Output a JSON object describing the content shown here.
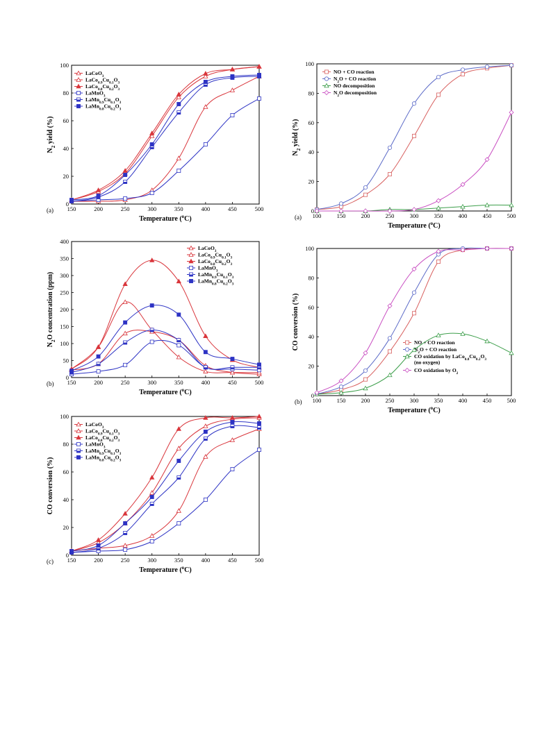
{
  "colors": {
    "red": "#d9353b",
    "blue": "#2d33c4",
    "green": "#3c9e4a",
    "pink": "#c94fc2",
    "salmon": "#d8605f",
    "slate": "#5a69c7"
  },
  "chart_data": [
    {
      "id": "p1",
      "panel_label": "(a)",
      "type": "line",
      "xlabel": "Temperature (°C)",
      "ylabel": "N2 yield (%)",
      "xlim": [
        150,
        500
      ],
      "ylim": [
        0,
        100
      ],
      "xticks": [
        150,
        200,
        250,
        300,
        350,
        400,
        450,
        500
      ],
      "yticks": [
        0,
        20,
        40,
        60,
        80,
        100
      ],
      "x": [
        150,
        200,
        250,
        300,
        350,
        400,
        450,
        500
      ],
      "legend_position": "top-left",
      "series": [
        {
          "name": "LaCoO3",
          "color": "red",
          "marker": "tri-open",
          "values": [
            2,
            2,
            3,
            10,
            33,
            70,
            82,
            92
          ]
        },
        {
          "name": "LaCo0.9Cu0.1O3",
          "color": "red",
          "marker": "tri-open",
          "values": [
            3,
            9,
            22,
            49,
            77,
            92,
            97,
            99
          ]
        },
        {
          "name": "LaCo0.8Cu0.2O3",
          "color": "red",
          "marker": "tri-filled",
          "values": [
            3,
            10,
            24,
            51,
            79,
            94,
            97,
            99
          ]
        },
        {
          "name": "LaMnO3",
          "color": "blue",
          "marker": "sq-open",
          "values": [
            2,
            3,
            4,
            8,
            24,
            43,
            64,
            76
          ]
        },
        {
          "name": "LaMn0.9Cu0.1O3",
          "color": "blue",
          "marker": "sq-half",
          "values": [
            2,
            5,
            16,
            41,
            66,
            86,
            91,
            92
          ]
        },
        {
          "name": "LaMn0.8Cu0.2O3",
          "color": "blue",
          "marker": "sq-filled",
          "values": [
            3,
            6,
            21,
            43,
            72,
            88,
            92,
            93
          ]
        }
      ]
    },
    {
      "id": "p2",
      "panel_label": "(b)",
      "type": "line",
      "xlabel": "Temperature (°C)",
      "ylabel": "N2O concentration (ppm)",
      "xlim": [
        150,
        500
      ],
      "ylim": [
        0,
        400
      ],
      "xticks": [
        150,
        200,
        250,
        300,
        350,
        400,
        450,
        500
      ],
      "yticks": [
        0,
        50,
        100,
        150,
        200,
        250,
        300,
        350,
        400
      ],
      "x": [
        150,
        200,
        250,
        300,
        350,
        400,
        450,
        500
      ],
      "legend_position": "top-right",
      "series": [
        {
          "name": "LaCoO3",
          "color": "red",
          "marker": "tri-open",
          "values": [
            22,
            40,
            130,
            135,
            110,
            35,
            15,
            10
          ]
        },
        {
          "name": "LaCo0.9Cu0.1O3",
          "color": "red",
          "marker": "tri-open",
          "values": [
            25,
            90,
            222,
            140,
            60,
            18,
            15,
            15
          ]
        },
        {
          "name": "LaCo0.8Cu0.2O3",
          "color": "red",
          "marker": "tri-filled",
          "values": [
            25,
            90,
            275,
            345,
            283,
            122,
            52,
            30
          ]
        },
        {
          "name": "LaMnO3",
          "color": "blue",
          "marker": "sq-open",
          "values": [
            10,
            18,
            37,
            105,
            95,
            30,
            25,
            22
          ]
        },
        {
          "name": "LaMn0.9Cu0.1O3",
          "color": "blue",
          "marker": "sq-half",
          "values": [
            15,
            40,
            103,
            140,
            110,
            30,
            30,
            30
          ]
        },
        {
          "name": "LaMn0.8Cu0.2O3",
          "color": "blue",
          "marker": "sq-filled",
          "values": [
            20,
            62,
            162,
            212,
            185,
            75,
            55,
            38
          ]
        }
      ]
    },
    {
      "id": "p3",
      "panel_label": "(c)",
      "type": "line",
      "xlabel": "Temperature (°C)",
      "ylabel": "CO conversion (%)",
      "xlim": [
        150,
        500
      ],
      "ylim": [
        0,
        100
      ],
      "xticks": [
        150,
        200,
        250,
        300,
        350,
        400,
        450,
        500
      ],
      "yticks": [
        0,
        20,
        40,
        60,
        80,
        100
      ],
      "x": [
        150,
        200,
        250,
        300,
        350,
        400,
        450,
        500
      ],
      "legend_position": "top-left",
      "series": [
        {
          "name": "LaCoO3",
          "color": "red",
          "marker": "tri-open",
          "values": [
            3,
            5,
            7,
            14,
            32,
            71,
            83,
            91
          ]
        },
        {
          "name": "LaCo0.9Cu0.1O3",
          "color": "red",
          "marker": "tri-open",
          "values": [
            3,
            9,
            23,
            45,
            77,
            93,
            98,
            99
          ]
        },
        {
          "name": "LaCo0.8Cu0.2O3",
          "color": "red",
          "marker": "tri-filled",
          "values": [
            3,
            11,
            30,
            56,
            91,
            99,
            99,
            100
          ]
        },
        {
          "name": "LaMnO3",
          "color": "blue",
          "marker": "sq-open",
          "values": [
            2,
            3,
            4,
            10,
            23,
            40,
            62,
            76
          ]
        },
        {
          "name": "LaMn0.9Cu0.1O3",
          "color": "blue",
          "marker": "sq-half",
          "values": [
            2,
            5,
            16,
            37,
            56,
            84,
            93,
            92
          ]
        },
        {
          "name": "LaMn0.8Cu0.2O3",
          "color": "blue",
          "marker": "sq-filled",
          "values": [
            3,
            7,
            23,
            42,
            68,
            89,
            96,
            95
          ]
        }
      ]
    },
    {
      "id": "p4",
      "panel_label": "(a)",
      "type": "line",
      "xlabel": "Temperature (°C)",
      "ylabel": "N2 yield (%)",
      "xlim": [
        100,
        500
      ],
      "ylim": [
        0,
        100
      ],
      "xticks": [
        100,
        150,
        200,
        250,
        300,
        350,
        400,
        450,
        500
      ],
      "yticks": [
        0,
        20,
        40,
        60,
        80,
        100
      ],
      "x": [
        100,
        150,
        200,
        250,
        300,
        350,
        400,
        450,
        500
      ],
      "legend_position": "top-left",
      "series": [
        {
          "name": "NO + CO reaction",
          "color": "salmon",
          "marker": "sq-open",
          "values": [
            1,
            3,
            11,
            25,
            51,
            79,
            93,
            97,
            99
          ]
        },
        {
          "name": "N2O + CO reaction",
          "color": "slate",
          "marker": "circ-open",
          "values": [
            1,
            5,
            16,
            43,
            73,
            91,
            96,
            98,
            99
          ]
        },
        {
          "name": "NO decomposition",
          "color": "green",
          "marker": "tri-open",
          "values": [
            0,
            0,
            0,
            1,
            1,
            2,
            3,
            4,
            4
          ]
        },
        {
          "name": "N2O decomposition",
          "color": "pink",
          "marker": "dia-open",
          "values": [
            0,
            0,
            0,
            0,
            1,
            7,
            18,
            35,
            67
          ]
        }
      ]
    },
    {
      "id": "p5",
      "panel_label": "(b)",
      "type": "line",
      "xlabel": "Temperature (°C)",
      "ylabel": "CO conversion (%)",
      "xlim": [
        100,
        500
      ],
      "ylim": [
        0,
        100
      ],
      "xticks": [
        100,
        150,
        200,
        250,
        300,
        350,
        400,
        450,
        500
      ],
      "yticks": [
        0,
        20,
        40,
        60,
        80,
        100
      ],
      "x": [
        100,
        150,
        200,
        250,
        300,
        350,
        400,
        450,
        500
      ],
      "legend_position": "bottom-right",
      "series": [
        {
          "name": "NO + CO reaction",
          "color": "salmon",
          "marker": "sq-open",
          "values": [
            1,
            4,
            11,
            30,
            56,
            91,
            99,
            100,
            100
          ]
        },
        {
          "name": "N2O + CO reaction",
          "color": "slate",
          "marker": "circ-open",
          "values": [
            1,
            6,
            17,
            39,
            70,
            96,
            100,
            100,
            100
          ]
        },
        {
          "name": "CO oxidation by LaCo0.8Cu0.2O3",
          "name_note": "(no oxygen)",
          "color": "green",
          "marker": "tri-open",
          "values": [
            1,
            2,
            5,
            14,
            31,
            41,
            42,
            37,
            29
          ]
        },
        {
          "name": "CO oxidation by O2",
          "color": "pink",
          "marker": "dia-open",
          "values": [
            2,
            10,
            29,
            61,
            86,
            98,
            99,
            100,
            100
          ]
        }
      ]
    }
  ]
}
